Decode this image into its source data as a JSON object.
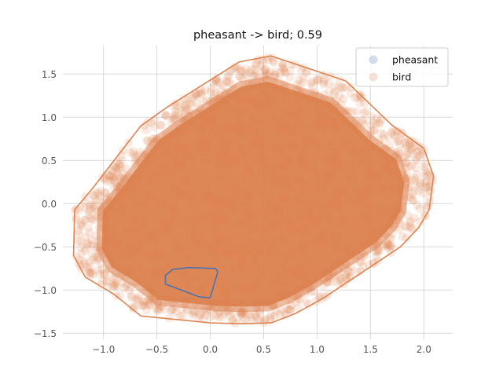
{
  "chart_data": {
    "type": "scatter",
    "title": "pheasant -> bird; 0.59",
    "xlabel": "",
    "ylabel": "",
    "xlim": [
      -1.38,
      2.27
    ],
    "ylim": [
      -1.57,
      1.83
    ],
    "x_ticks": [
      -1.0,
      -0.5,
      0.0,
      0.5,
      1.0,
      1.5,
      2.0
    ],
    "x_tick_labels": [
      "−1.0",
      "−0.5",
      "0.0",
      "0.5",
      "1.0",
      "1.5",
      "2.0"
    ],
    "y_ticks": [
      -1.5,
      -1.0,
      -0.5,
      0.0,
      0.5,
      1.0,
      1.5
    ],
    "y_tick_labels": [
      "−1.5",
      "−1.0",
      "−0.5",
      "0.0",
      "0.5",
      "1.0",
      "1.5"
    ],
    "grid": true,
    "legend_position": "top-right",
    "series": [
      {
        "name": "pheasant",
        "color": "#4c72b0",
        "hull": [
          [
            -0.42,
            -0.83
          ],
          [
            -0.35,
            -0.76
          ],
          [
            -0.2,
            -0.74
          ],
          [
            0.05,
            -0.75
          ],
          [
            0.07,
            -0.79
          ],
          [
            0.0,
            -1.09
          ],
          [
            -0.1,
            -1.08
          ],
          [
            -0.42,
            -0.93
          ]
        ]
      },
      {
        "name": "bird",
        "color": "#dd8452",
        "hull": [
          [
            -1.27,
            -0.07
          ],
          [
            -1.1,
            0.18
          ],
          [
            -0.65,
            0.9
          ],
          [
            -0.4,
            1.12
          ],
          [
            0.27,
            1.64
          ],
          [
            0.57,
            1.71
          ],
          [
            1.27,
            1.42
          ],
          [
            1.7,
            0.91
          ],
          [
            2.0,
            0.64
          ],
          [
            2.09,
            0.32
          ],
          [
            2.05,
            -0.07
          ],
          [
            1.95,
            -0.28
          ],
          [
            1.78,
            -0.5
          ],
          [
            1.38,
            -0.83
          ],
          [
            1.05,
            -1.1
          ],
          [
            0.8,
            -1.27
          ],
          [
            0.57,
            -1.38
          ],
          [
            0.3,
            -1.39
          ],
          [
            0.0,
            -1.38
          ],
          [
            -0.65,
            -1.3
          ],
          [
            -0.9,
            -1.05
          ],
          [
            -1.17,
            -0.85
          ],
          [
            -1.28,
            -0.6
          ]
        ]
      }
    ]
  }
}
